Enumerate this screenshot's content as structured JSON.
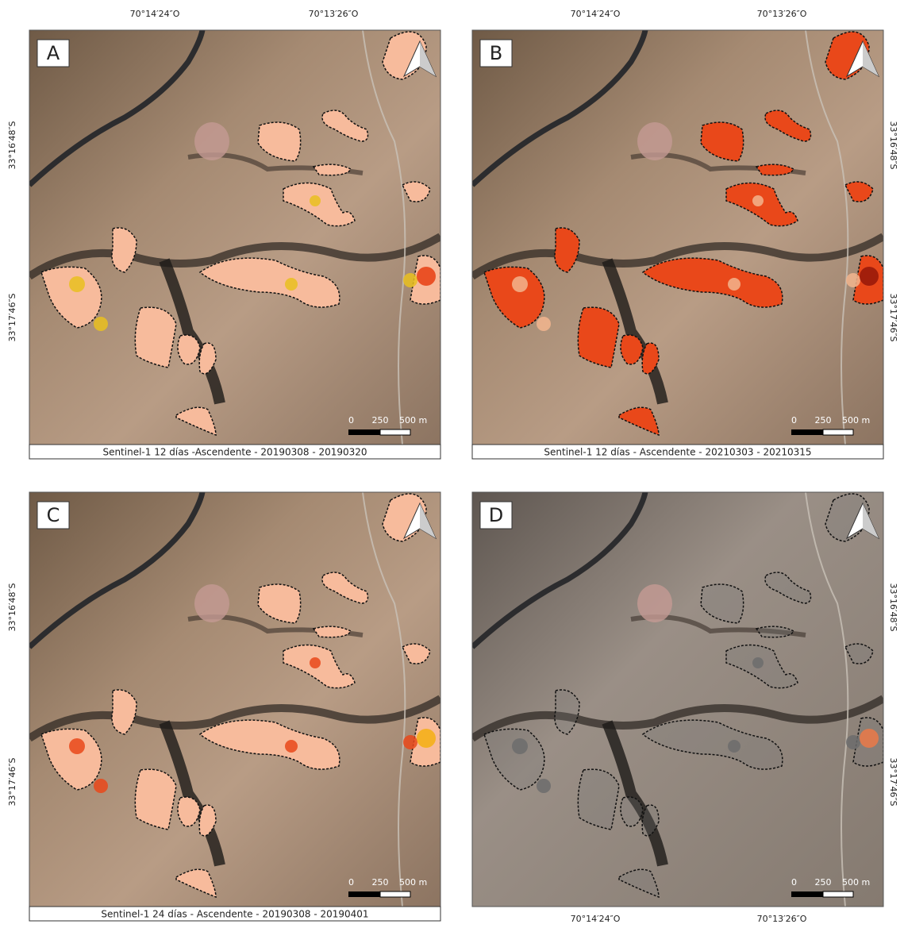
{
  "top_labels": [
    "70°14′24″O",
    "70°13′26″O"
  ],
  "left_labels": [
    "33°16′48″S",
    "33°17′46″S"
  ],
  "panels": [
    {
      "letter": "A",
      "caption": "Sentinel-1 12 días -Ascendente - 20190308 - 20190320"
    },
    {
      "letter": "B",
      "caption": "Sentinel-1 12 días - Ascendente - 20210303 - 20210315"
    },
    {
      "letter": "C",
      "caption": "Sentinel-1 24 días - Ascendente - 20190308 - 20190401"
    },
    {
      "letter": "D"
    }
  ],
  "scale_bar": [
    "0",
    "250",
    "500 m"
  ]
}
